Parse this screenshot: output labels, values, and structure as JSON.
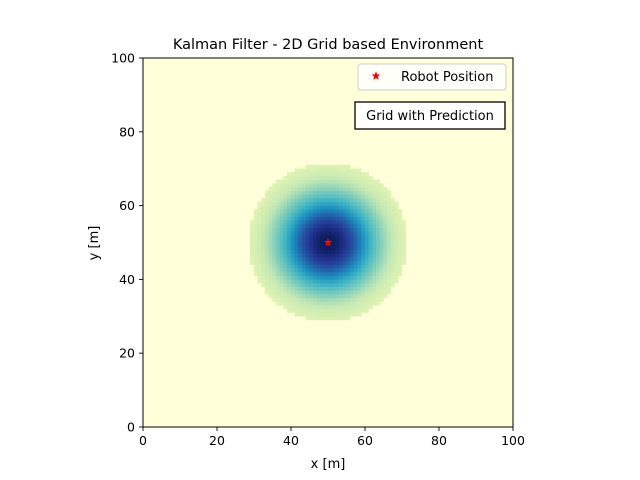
{
  "figure": {
    "title": "Kalman Filter - 2D Grid based Environment",
    "xlabel": "x [m]",
    "ylabel": "y [m]"
  },
  "legend": {
    "entries": [
      {
        "label": "Robot Position",
        "marker": "star",
        "color": "#ff0000"
      }
    ],
    "location": "upper-right"
  },
  "annotation": {
    "text": "Grid with Prediction",
    "location": "upper-right, below legend"
  },
  "chart_data": {
    "type": "heatmap",
    "title": "Kalman Filter - 2D Grid based Environment",
    "xlabel": "x [m]",
    "ylabel": "y [m]",
    "xlim": [
      0,
      100
    ],
    "ylim": [
      0,
      100
    ],
    "xticks": [
      0,
      20,
      40,
      60,
      80,
      100
    ],
    "yticks": [
      0,
      20,
      40,
      60,
      80,
      100
    ],
    "grid": false,
    "colormap": "YlGnBu",
    "grid_resolution": 1,
    "distribution": {
      "kind": "gaussian",
      "mean": [
        50,
        50
      ],
      "sigma": [
        9,
        9
      ],
      "low_value_cutoff_radius": 21.5
    },
    "background_color": "#ffffd9",
    "robot_position": {
      "x": 50,
      "y": 50,
      "marker": "star",
      "color": "#ff0000",
      "label": "Robot Position"
    }
  }
}
